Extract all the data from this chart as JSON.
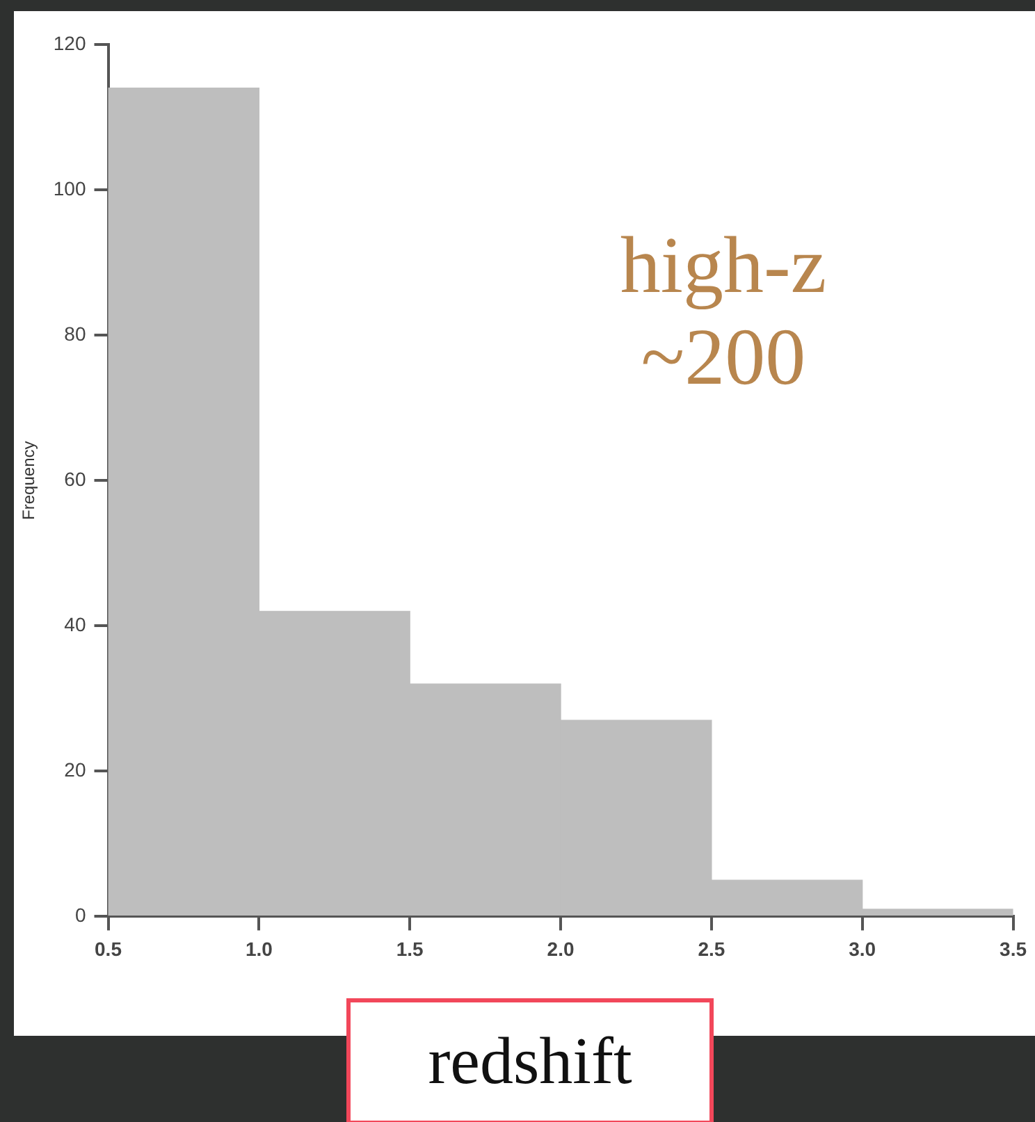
{
  "chart_data": {
    "type": "histogram",
    "xlabel": "redshift",
    "ylabel": "Frequency",
    "bins": [
      0.5,
      1.0,
      1.5,
      2.0,
      2.5,
      3.0,
      3.5
    ],
    "values": [
      114,
      42,
      32,
      27,
      5,
      1
    ],
    "color": "#bebebe",
    "xlim": [
      0.5,
      3.5
    ],
    "xticks": [
      {
        "value": 0.5,
        "label": "0.5"
      },
      {
        "value": 1.0,
        "label": "1.0"
      },
      {
        "value": 1.5,
        "label": "1.5"
      },
      {
        "value": 2.0,
        "label": "2.0"
      },
      {
        "value": 2.5,
        "label": "2.5"
      },
      {
        "value": 3.0,
        "label": "3.0"
      },
      {
        "value": 3.5,
        "label": "3.5"
      }
    ],
    "ylim": [
      0,
      120
    ],
    "yticks": [
      0,
      20,
      40,
      60,
      80,
      100,
      120
    ],
    "grid": false,
    "legend": false,
    "annotations": [
      "high-z\n~200"
    ]
  }
}
